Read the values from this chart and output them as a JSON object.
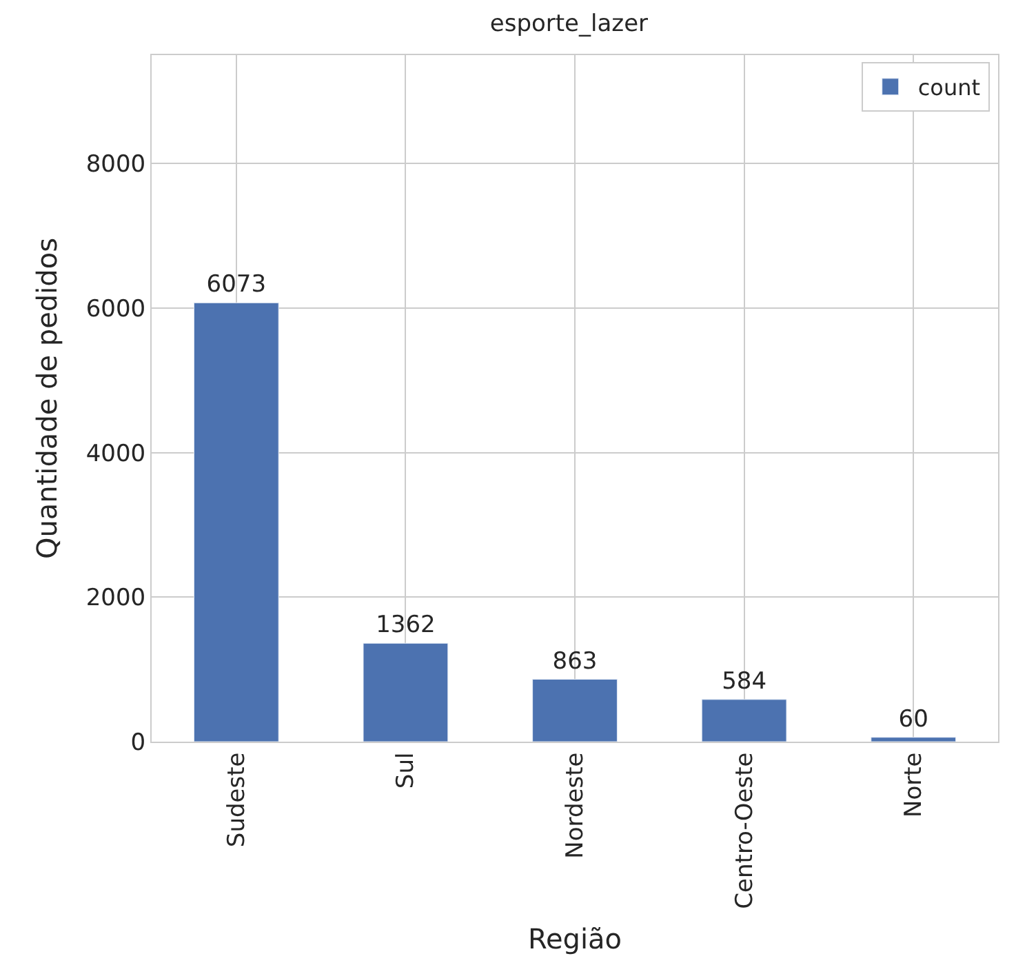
{
  "chart_data": {
    "type": "bar",
    "title": "esporte_lazer",
    "xlabel": "Região",
    "ylabel": "Quantidade de pedidos",
    "categories": [
      "Sudeste",
      "Sul",
      "Nordeste",
      "Centro-Oeste",
      "Norte"
    ],
    "series": [
      {
        "name": "count",
        "color": "#4c72b0",
        "values": [
          6073,
          1362,
          863,
          584,
          60
        ]
      }
    ],
    "ylim": [
      0,
      9500
    ],
    "yticks": [
      0,
      2000,
      4000,
      6000,
      8000
    ],
    "grid": true,
    "legend": "top right",
    "data_labels": true
  }
}
